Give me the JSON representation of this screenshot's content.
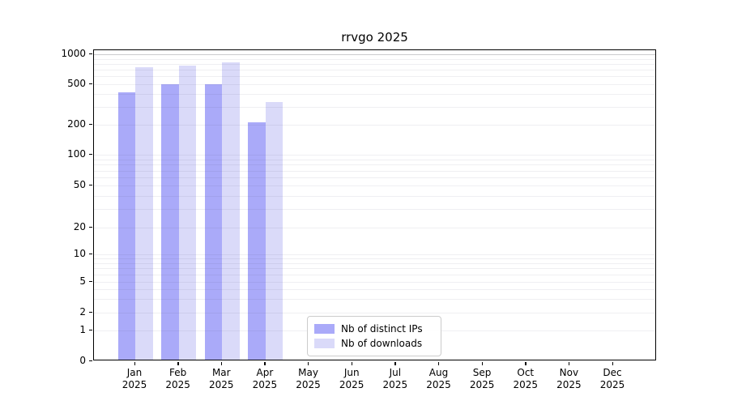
{
  "chart_data": {
    "type": "bar",
    "title": "rrvgo 2025",
    "categories": [
      "Jan",
      "Feb",
      "Mar",
      "Apr",
      "May",
      "Jun",
      "Jul",
      "Aug",
      "Sep",
      "Oct",
      "Nov",
      "Dec"
    ],
    "x_tick_year": "2025",
    "series": [
      {
        "name": "Nb of distinct IPs",
        "color": "#aaaaf9",
        "values": [
          400,
          485,
          480,
          205,
          null,
          null,
          null,
          null,
          null,
          null,
          null,
          null
        ]
      },
      {
        "name": "Nb of downloads",
        "color": "#dadaf9",
        "values": [
          720,
          740,
          800,
          320,
          null,
          null,
          null,
          null,
          null,
          null,
          null,
          null
        ]
      }
    ],
    "y_scale": "symlog",
    "y_ticks": [
      0,
      1,
      2,
      5,
      10,
      20,
      50,
      100,
      200,
      500,
      1000
    ],
    "y_minor_grid": [
      3,
      4,
      6,
      7,
      8,
      9,
      30,
      40,
      60,
      70,
      80,
      90,
      300,
      400,
      600,
      700,
      800,
      900
    ],
    "ylim": [
      0,
      1000
    ],
    "grid": true,
    "legend_position": "lower-center",
    "legend_entries": [
      "Nb of distinct IPs",
      "Nb of downloads"
    ]
  },
  "colors": {
    "distinct_ips": "#aaaaf9",
    "downloads": "#dadaf9",
    "grid_minor": "#ededed",
    "grid_top": "#c8c8c8",
    "axis": "#000000"
  }
}
